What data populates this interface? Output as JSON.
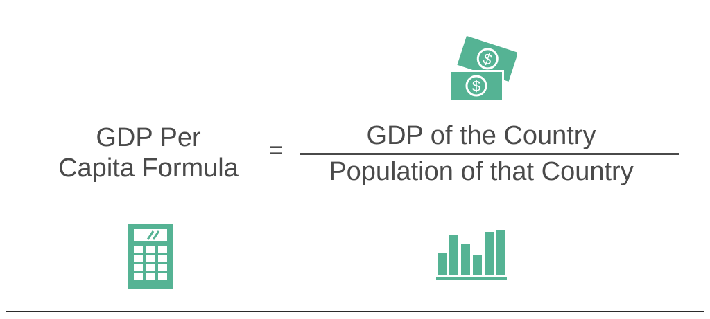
{
  "formula": {
    "lhs_line1": "GDP Per",
    "lhs_line2": "Capita Formula",
    "equals": "=",
    "numerator": "GDP of the Country",
    "denominator": "Population of that Country"
  },
  "icons": {
    "top": "money-bills-icon",
    "bottom_left": "calculator-icon",
    "bottom_right": "bar-chart-icon",
    "dollar_glyph": "$"
  },
  "colors": {
    "accent": "#55B394",
    "text": "#4A4A4A",
    "border": "#2B2B2B"
  }
}
